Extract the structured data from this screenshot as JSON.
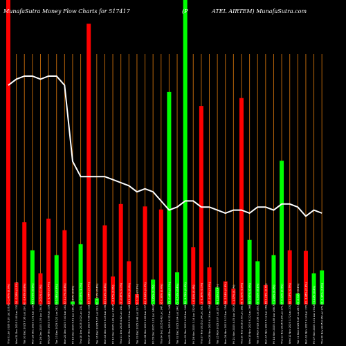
{
  "chart_data": {
    "type": "bar",
    "title_left": "MunafaSutra  Money Flow  Charts for 517417",
    "title_mid": "(P",
    "title_right": "ATEL  AIRTEM) MunafaSutra.com",
    "colors": {
      "background": "#000000",
      "up": "#00ff00",
      "down": "#ff0000",
      "grid": "#b8650a",
      "line": "#ffffff"
    },
    "categories": [
      "Thu 01 Jan 2026 6.16 Lac 226.60 -1.47% (0.8%)",
      "Wed 31 Dec 2025 2.80 Lac 230.00 -0.26% (0.5%)",
      "Tue 30 Dec 2025 7.36 Lac 230.60 -2.46% (0.8%)",
      "Mon 29 Dec 2025 3.91 Lac 236.40 0.90% (0.8%)",
      "Fri 26 Dec 2025 3.39 Lac 234.30 -2.01% (1.1%)",
      "Wed 24 Dec 2025 5.66 Lac 239.10 -1.42% (0.4%)",
      "Tue 23 Dec 2025 3.22 Lac 242.55 0.34% (0.4%)",
      "Mon 22 Dec 2025 7.40 Lac 241.72 2.27% (0.4%)",
      "Fri 19 Dec 2025 5.61 Lac 236.35 1.89% (0.5%)",
      "Thu 18 Dec 2025 3.02 Lac 231.97 -0.06% (1.1%)",
      "Wed 17 Dec 2025 4.88 Lac 232.10 -0.64% (0.4%)",
      "Tue 16 Dec 2025 5.07 Lac 233.60 -1.23% (0.4%)",
      "Mon 15 Dec 2025 6.25 Lac 236.50 0.24% (0.4%)",
      "Fri 12 Dec 2025 3.49 Lac 235.95 -2.17% (0.8%)",
      "Thu 11 Dec 2025 4.42 Lac 241.20 -0.39% (0.1%)",
      "Wed 10 Dec 2025 5.22 Lac 242.15 1.96% (0.4%)",
      "Tue 09 Dec 2025 3.48 Lac 237.50 0.12% (0.8%)",
      "Mon 08 Dec 2025 2.86 Lac 237.20 -3.12% (2.5%)",
      "Fri 05 Dec 2025 3.91 Lac 244.85 -1.25% (0.2%)",
      "Thu 04 Dec 2025 6.42 Lac 247.95 0.90% (0.4%)",
      "Wed 03 Dec 2025 6.32 Lac 245.75 -0.44% (0.1%)",
      "Tue 02 Dec 2025 3.04 Lac 246.85 -0.59% (0.4%)",
      "Mon 01 Dec 2025 4.56 Lac 248.30 -1.79% (0.8%)",
      "Fri 28 Nov 2025 3.14 Lac 252.83 -0.10% (0.4%)",
      "Thu 27 Nov 2025 2.34 Lac 253.10 -1.39% (0.1%)",
      "Wed 26 Nov 2025 6.16 Lac 256.67 -0.43% (0.4%)",
      "Tue 25 Nov 2025 3.07 Lac 257.78 1.22% (0.4%)",
      "Mon 24 Nov 2025 5.23 Lac 254.68 -2.14% (0.8%)",
      "Fri 21 Nov 2025 4.35 Lac 260.25 -1.37% (0.1%)",
      "Thu 20 Nov 2025 3.70 Lac 263.86 -1.03% (0.5%)",
      "Wed 19 Nov 2025 6.22 Lac 266.60 0.57% (0.4%)",
      "Tue 18 Nov 2025 3.56 Lac 265.09 -1.62% (0.1%)",
      "Mon 17 Nov 2025 5.12 Lac 269.45 0.28% (0.4%)",
      "Fri 14 Nov 2025 4.58 Lac 268.70 -1.09% (0.8%)",
      "Thu 13 Nov 2025 4.24 Lac 271.67 0.32% (0.4%)",
      "Wed 12 Nov 2025 3.72 Lac 270.80 1.18% (0.5%)",
      "Tue 11 Nov 2025 5.47 Lac 267.65 -0.94% (0.4%)",
      "Mon 10 Nov 2025 4.34 Lac 270.20 -1.46% (0.8%)",
      "Fri 07 Nov 2025 3.31 Lac 274.20 0.14% (0.4%)",
      "Thu 06 Nov 2025 2.95 Lac 273.80 -1.95% (0.8%)"
    ],
    "volumes": [
      100,
      7.2,
      27,
      17.8,
      10.2,
      28.2,
      16.2,
      24.4,
      1,
      19.8,
      92.2,
      2,
      26,
      9.2,
      33,
      14.2,
      3.4,
      32.2,
      8.2,
      31.2,
      69.8,
      10.6,
      100,
      18.8,
      65.2,
      12.2,
      5.6,
      7.6,
      5.2,
      67.8,
      21.2,
      14.2,
      6.4,
      16.2,
      47.2,
      17.8,
      3.6,
      17.6,
      10.2,
      11.2
    ],
    "directions": [
      "down",
      "down",
      "down",
      "up",
      "down",
      "down",
      "up",
      "down",
      "up",
      "up",
      "down",
      "up",
      "down",
      "down",
      "down",
      "down",
      "down",
      "down",
      "up",
      "down",
      "up",
      "up",
      "up",
      "down",
      "down",
      "down",
      "up",
      "down",
      "down",
      "down",
      "up",
      "up",
      "down",
      "up",
      "up",
      "down",
      "up",
      "down",
      "up",
      "up"
    ],
    "money_flow_line": [
      0,
      72,
      74,
      75,
      75,
      74,
      75,
      75,
      72,
      47,
      42,
      42,
      42,
      42,
      41,
      40,
      39,
      37,
      38,
      37,
      34,
      31,
      32,
      34,
      34,
      32,
      32,
      31,
      30,
      31,
      31,
      30,
      32,
      32,
      31,
      33,
      33,
      32,
      29,
      31,
      30
    ],
    "grid_lines": true,
    "ylim": [
      0,
      100
    ]
  }
}
